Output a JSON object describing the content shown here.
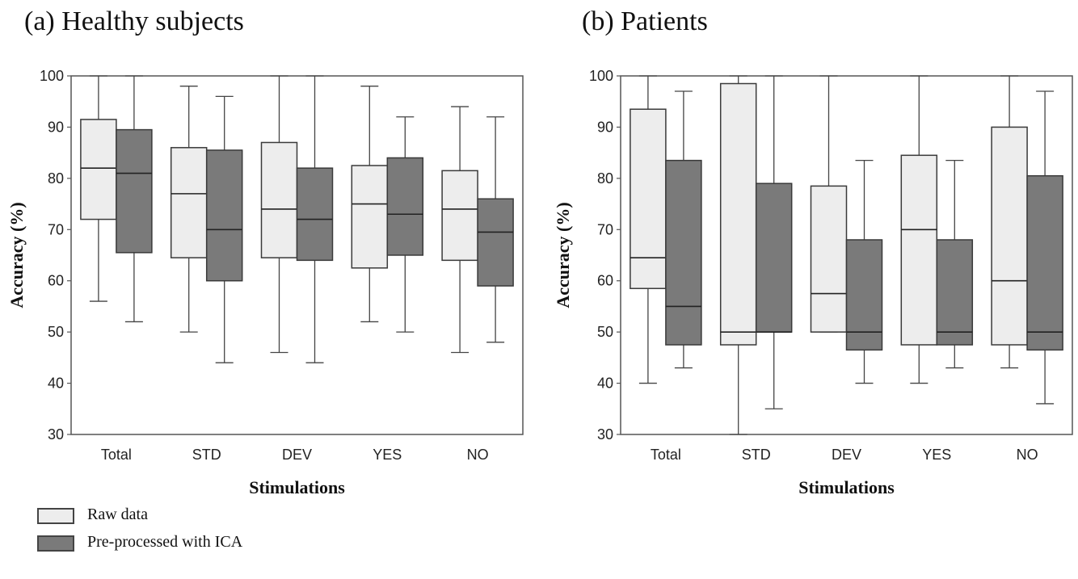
{
  "panels": [
    {
      "title": "(a) Healthy subjects"
    },
    {
      "title": "(b) Patients"
    }
  ],
  "legend": {
    "items": [
      {
        "label": "Raw data",
        "color": "#ededed"
      },
      {
        "label": "Pre-processed with ICA",
        "color": "#7a7a7a"
      }
    ]
  },
  "chart_data": [
    {
      "type": "boxplot",
      "title": "(a) Healthy subjects",
      "xlabel": "Stimulations",
      "ylabel": "Accuracy (%)",
      "ylim": [
        30,
        100
      ],
      "yticks": [
        30,
        40,
        50,
        60,
        70,
        80,
        90,
        100
      ],
      "categories": [
        "Total",
        "STD",
        "DEV",
        "YES",
        "NO"
      ],
      "series": [
        {
          "name": "Raw data",
          "color": "#ededed",
          "boxes": [
            {
              "min": 56,
              "q1": 72,
              "median": 82,
              "q3": 91.5,
              "max": 100
            },
            {
              "min": 50,
              "q1": 64.5,
              "median": 77,
              "q3": 86,
              "max": 98
            },
            {
              "min": 46,
              "q1": 64.5,
              "median": 74,
              "q3": 87,
              "max": 100
            },
            {
              "min": 52,
              "q1": 62.5,
              "median": 75,
              "q3": 82.5,
              "max": 98
            },
            {
              "min": 46,
              "q1": 64,
              "median": 74,
              "q3": 81.5,
              "max": 94
            }
          ]
        },
        {
          "name": "Pre-processed with ICA",
          "color": "#7a7a7a",
          "boxes": [
            {
              "min": 52,
              "q1": 65.5,
              "median": 81,
              "q3": 89.5,
              "max": 100
            },
            {
              "min": 44,
              "q1": 60,
              "median": 70,
              "q3": 85.5,
              "max": 96
            },
            {
              "min": 44,
              "q1": 64,
              "median": 72,
              "q3": 82,
              "max": 100
            },
            {
              "min": 50,
              "q1": 65,
              "median": 73,
              "q3": 84,
              "max": 92
            },
            {
              "min": 48,
              "q1": 59,
              "median": 69.5,
              "q3": 76,
              "max": 92
            }
          ]
        }
      ]
    },
    {
      "type": "boxplot",
      "title": "(b) Patients",
      "xlabel": "Stimulations",
      "ylabel": "Accuracy (%)",
      "ylim": [
        30,
        100
      ],
      "yticks": [
        30,
        40,
        50,
        60,
        70,
        80,
        90,
        100
      ],
      "categories": [
        "Total",
        "STD",
        "DEV",
        "YES",
        "NO"
      ],
      "series": [
        {
          "name": "Raw data",
          "color": "#ededed",
          "boxes": [
            {
              "min": 40,
              "q1": 58.5,
              "median": 64.5,
              "q3": 93.5,
              "max": 100
            },
            {
              "min": 30,
              "q1": 47.5,
              "median": 50,
              "q3": 98.5,
              "max": 100
            },
            {
              "min": 50,
              "q1": 50,
              "median": 57.5,
              "q3": 78.5,
              "max": 100
            },
            {
              "min": 40,
              "q1": 47.5,
              "median": 70,
              "q3": 84.5,
              "max": 100
            },
            {
              "min": 43,
              "q1": 47.5,
              "median": 60,
              "q3": 90,
              "max": 100
            }
          ]
        },
        {
          "name": "Pre-processed with ICA",
          "color": "#7a7a7a",
          "boxes": [
            {
              "min": 43,
              "q1": 47.5,
              "median": 55,
              "q3": 83.5,
              "max": 97
            },
            {
              "min": 35,
              "q1": 50,
              "median": 50,
              "q3": 79,
              "max": 100
            },
            {
              "min": 40,
              "q1": 46.5,
              "median": 50,
              "q3": 68,
              "max": 83.5
            },
            {
              "min": 43,
              "q1": 47.5,
              "median": 50,
              "q3": 68,
              "max": 83.5
            },
            {
              "min": 36,
              "q1": 46.5,
              "median": 50,
              "q3": 80.5,
              "max": 97
            }
          ]
        }
      ]
    }
  ]
}
